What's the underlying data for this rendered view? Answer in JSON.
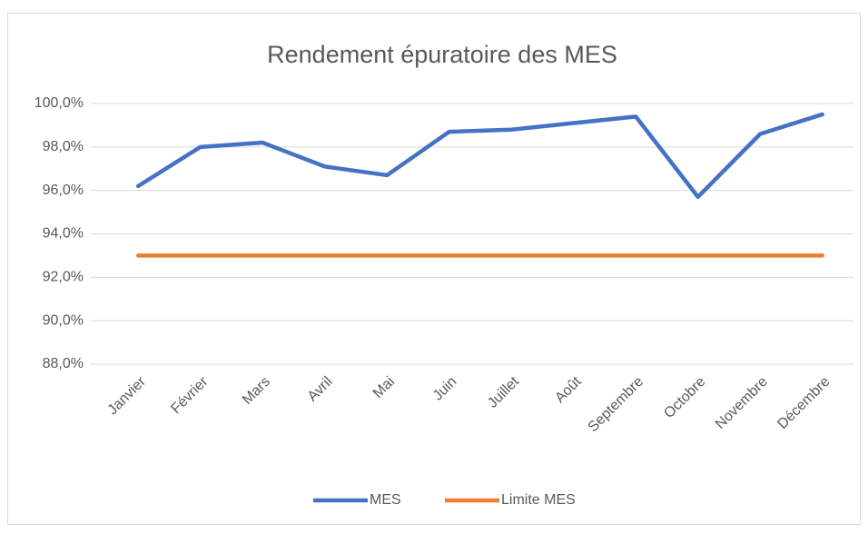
{
  "chart_data": {
    "type": "line",
    "title": "Rendement épuratoire des MES",
    "categories": [
      "Janvier",
      "Février",
      "Mars",
      "Avril",
      "Mai",
      "Juin",
      "Juillet",
      "Août",
      "Septembre",
      "Octobre",
      "Novembre",
      "Décembre"
    ],
    "series": [
      {
        "name": "MES",
        "color": "#4472c4",
        "values": [
          96.2,
          98.0,
          98.2,
          97.1,
          96.7,
          98.7,
          98.8,
          99.1,
          99.4,
          95.7,
          98.6,
          99.5
        ]
      },
      {
        "name": "Limite MES",
        "color": "#ed7d31",
        "values": [
          93.0,
          93.0,
          93.0,
          93.0,
          93.0,
          93.0,
          93.0,
          93.0,
          93.0,
          93.0,
          93.0,
          93.0
        ]
      }
    ],
    "ylim": [
      88,
      100
    ],
    "yticks": [
      {
        "value": 88,
        "label": "88,0%"
      },
      {
        "value": 90,
        "label": "90,0%"
      },
      {
        "value": 92,
        "label": "92,0%"
      },
      {
        "value": 94,
        "label": "94,0%"
      },
      {
        "value": 96,
        "label": "96,0%"
      },
      {
        "value": 98,
        "label": "98,0%"
      },
      {
        "value": 100,
        "label": "100,0%"
      }
    ],
    "grid": true,
    "legend": "bottom"
  }
}
